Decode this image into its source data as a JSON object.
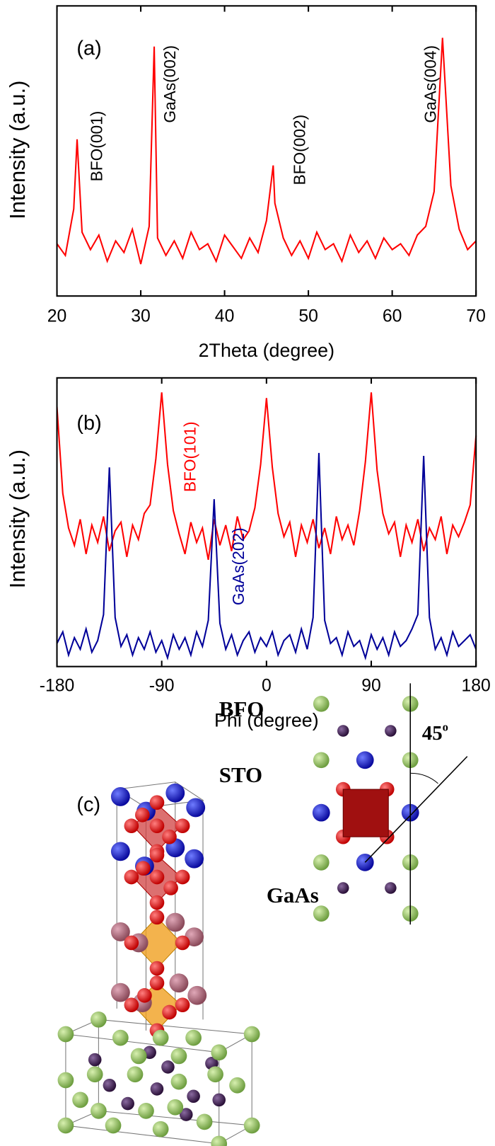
{
  "chart_data": [
    {
      "type": "line",
      "xlabel": "2Theta (degree)",
      "ylabel": "Intensity (a.u.)",
      "x": [
        20,
        21,
        22,
        22.4,
        23,
        24,
        25,
        26,
        27,
        28,
        29,
        30,
        31,
        31.6,
        32,
        33,
        34,
        35,
        36,
        37,
        38,
        39,
        40,
        41,
        42,
        43,
        44,
        45,
        45.8,
        46,
        47,
        48,
        49,
        50,
        51,
        52,
        53,
        54,
        55,
        56,
        57,
        58,
        59,
        60,
        61,
        62,
        63,
        64,
        65,
        66,
        67,
        68,
        69,
        70
      ],
      "series": [
        {
          "color": "#ff0000",
          "values": [
            1.8,
            1.4,
            3.0,
            5.4,
            2.2,
            1.6,
            2.1,
            1.2,
            1.9,
            1.5,
            2.3,
            1.1,
            2.4,
            8.6,
            2.0,
            1.4,
            1.9,
            1.3,
            2.2,
            1.6,
            1.8,
            1.2,
            2.1,
            1.7,
            1.3,
            2.0,
            1.5,
            2.6,
            4.5,
            3.2,
            2.0,
            1.4,
            1.9,
            1.3,
            2.2,
            1.6,
            1.8,
            1.2,
            2.1,
            1.5,
            1.9,
            1.3,
            2.0,
            1.6,
            1.8,
            1.4,
            2.1,
            2.4,
            3.6,
            8.9,
            3.8,
            2.3,
            1.6,
            1.9
          ]
        }
      ],
      "xlim": [
        20,
        70
      ],
      "xticks": [
        20,
        30,
        40,
        50,
        60,
        70
      ],
      "ylim": [
        0,
        10
      ],
      "annotations": [
        {
          "text": "(a)",
          "color": "#000000"
        },
        {
          "text": "BFO(001)",
          "color": "#000000"
        },
        {
          "text": "GaAs(002)",
          "color": "#000000"
        },
        {
          "text": "BFO(002)",
          "color": "#000000"
        },
        {
          "text": "GaAs(004)",
          "color": "#000000"
        }
      ]
    },
    {
      "type": "line",
      "xlabel": "Phi (degree)",
      "ylabel": "Intensity (a.u.)",
      "x": [
        -180,
        -175,
        -170,
        -165,
        -160,
        -155,
        -150,
        -145,
        -140,
        -135,
        -130,
        -125,
        -120,
        -115,
        -110,
        -105,
        -100,
        -95,
        -90,
        -85,
        -80,
        -75,
        -70,
        -65,
        -60,
        -55,
        -50,
        -45,
        -40,
        -35,
        -30,
        -25,
        -20,
        -15,
        -10,
        -5,
        0,
        5,
        10,
        15,
        20,
        25,
        30,
        35,
        40,
        45,
        50,
        55,
        60,
        65,
        70,
        75,
        80,
        85,
        90,
        95,
        100,
        105,
        110,
        115,
        120,
        125,
        130,
        135,
        140,
        145,
        150,
        155,
        160,
        165,
        170,
        175,
        180
      ],
      "series": [
        {
          "color": "#ff0000",
          "values": [
            9.0,
            6.0,
            4.8,
            4.2,
            5.1,
            3.9,
            4.9,
            4.3,
            5.2,
            4.0,
            4.7,
            5.0,
            3.8,
            4.9,
            4.4,
            5.3,
            5.6,
            7.2,
            9.5,
            7.0,
            5.4,
            4.6,
            3.9,
            5.0,
            4.3,
            4.8,
            3.7,
            5.1,
            4.2,
            4.9,
            4.0,
            5.2,
            4.4,
            4.7,
            5.5,
            7.0,
            9.3,
            6.9,
            5.3,
            4.5,
            5.0,
            3.8,
            4.9,
            4.3,
            5.1,
            4.1,
            4.8,
            3.9,
            5.2,
            4.4,
            4.9,
            4.2,
            5.4,
            7.1,
            9.5,
            6.8,
            5.3,
            4.6,
            5.0,
            3.8,
            4.9,
            4.3,
            5.1,
            4.0,
            4.8,
            4.4,
            5.2,
            3.9,
            4.9,
            4.5,
            5.0,
            5.6,
            8.0
          ]
        },
        {
          "color": "#000099",
          "values": [
            0.8,
            1.2,
            0.4,
            1.0,
            0.6,
            1.3,
            0.5,
            0.9,
            1.8,
            6.9,
            1.7,
            0.7,
            1.1,
            0.4,
            1.0,
            0.6,
            1.2,
            0.5,
            0.9,
            0.3,
            1.1,
            0.6,
            1.0,
            0.4,
            1.2,
            0.7,
            1.6,
            5.8,
            1.5,
            0.6,
            1.1,
            0.4,
            0.9,
            1.2,
            0.5,
            1.0,
            0.7,
            1.2,
            0.4,
            0.9,
            1.1,
            0.5,
            1.3,
            0.6,
            1.7,
            7.4,
            1.6,
            0.8,
            1.0,
            0.4,
            1.2,
            0.7,
            0.9,
            0.3,
            1.1,
            0.6,
            1.0,
            0.4,
            1.2,
            0.7,
            0.9,
            1.3,
            1.8,
            7.3,
            1.7,
            0.6,
            1.0,
            0.4,
            1.2,
            0.7,
            0.9,
            1.1,
            0.6
          ]
        }
      ],
      "xlim": [
        -180,
        180
      ],
      "xticks": [
        -180,
        -90,
        0,
        90,
        180
      ],
      "ylim": [
        0,
        10
      ],
      "annotations": [
        {
          "text": "(b)",
          "color": "#000000"
        },
        {
          "text": "BFO(101)",
          "color": "#ff0000"
        },
        {
          "text": "GaAs(202)",
          "color": "#000099"
        }
      ]
    }
  ],
  "diagram": {
    "panel_label": "(c)",
    "labels": [
      "BFO",
      "STO",
      "GaAs"
    ],
    "angle": "45",
    "angle_sup": "o"
  }
}
